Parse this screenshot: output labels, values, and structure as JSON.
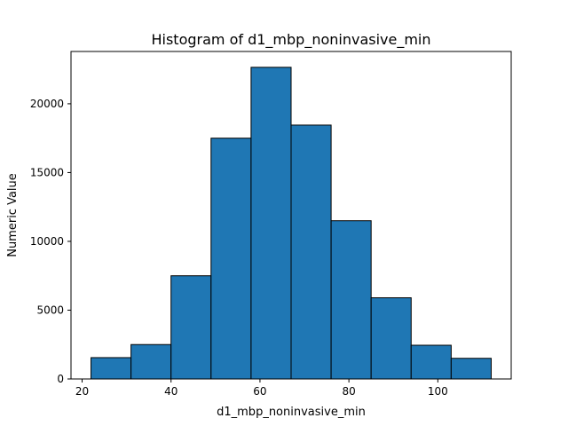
{
  "chart_data": {
    "type": "bar",
    "title": "Histogram of d1_mbp_noninvasive_min",
    "xlabel": "d1_mbp_noninvasive_min",
    "ylabel": "Numeric Value",
    "xlim": [
      17.5,
      116.5
    ],
    "ylim": [
      0,
      23800
    ],
    "xticks": [
      20,
      40,
      60,
      80,
      100
    ],
    "yticks": [
      0,
      5000,
      10000,
      15000,
      20000
    ],
    "bin_edges": [
      22,
      31,
      40,
      49,
      58,
      67,
      76,
      85,
      94,
      103,
      112
    ],
    "values": [
      1550,
      2500,
      7500,
      17500,
      22650,
      18450,
      11500,
      5900,
      2450,
      1500
    ],
    "bar_color": "#1f77b4",
    "edge_color": "#000000",
    "grid": false,
    "legend": "none"
  }
}
